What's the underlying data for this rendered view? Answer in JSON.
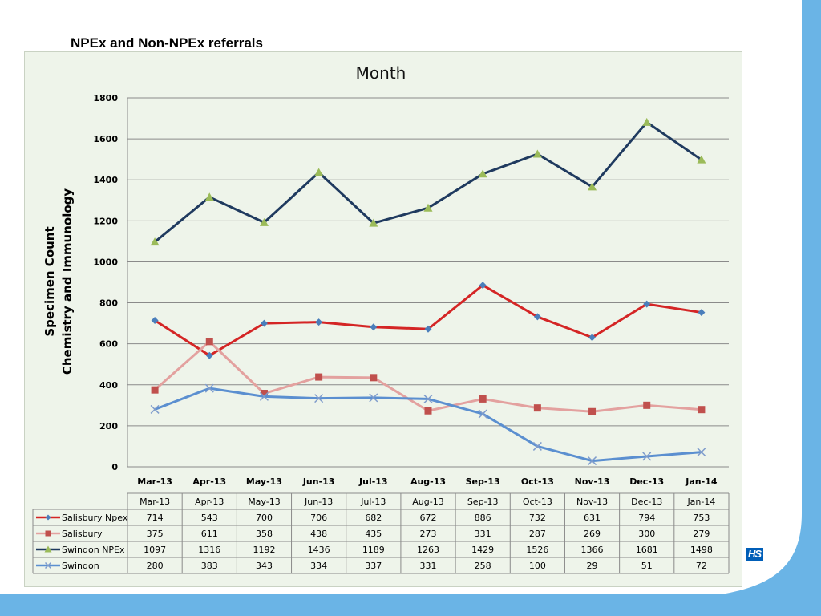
{
  "slide": {
    "title": "NPEx and Non-NPEx referrals",
    "logo_text": "HS",
    "accent_color": "#6ab4e6",
    "logo_color": "#005eb8",
    "chart_background": "#eef4ea"
  },
  "chart_data": {
    "type": "line",
    "title": "Month",
    "xlabel": "",
    "ylabel": [
      "Specimen Count",
      "Chemistry and Immunology"
    ],
    "ylim": [
      0,
      1800
    ],
    "yticks": [
      0,
      200,
      400,
      600,
      800,
      1000,
      1200,
      1400,
      1600,
      1800
    ],
    "grid": true,
    "legend": "data-table-below",
    "categories": [
      "Mar-13",
      "Apr-13",
      "May-13",
      "Jun-13",
      "Jul-13",
      "Aug-13",
      "Sep-13",
      "Oct-13",
      "Nov-13",
      "Dec-13",
      "Jan-14"
    ],
    "series": [
      {
        "name": "Salisbury Npex",
        "color": "#d42525",
        "marker": "diamond",
        "marker_color": "#4a7ebb",
        "values": [
          714,
          543,
          700,
          706,
          682,
          672,
          886,
          732,
          631,
          794,
          753
        ]
      },
      {
        "name": "Salisbury",
        "color": "#e3a19f",
        "marker": "square",
        "marker_color": "#c0504d",
        "values": [
          375,
          611,
          358,
          438,
          435,
          273,
          331,
          287,
          269,
          300,
          279
        ]
      },
      {
        "name": "Swindon NPEx",
        "color": "#1f3a5f",
        "marker": "triangle",
        "marker_color": "#9bbb59",
        "values": [
          1097,
          1316,
          1192,
          1436,
          1189,
          1263,
          1429,
          1526,
          1366,
          1681,
          1498
        ]
      },
      {
        "name": "Swindon",
        "color": "#5b8fd0",
        "marker": "x",
        "marker_color": "#7f9ccc",
        "values": [
          280,
          383,
          343,
          334,
          337,
          331,
          258,
          100,
          29,
          51,
          72
        ]
      }
    ]
  }
}
